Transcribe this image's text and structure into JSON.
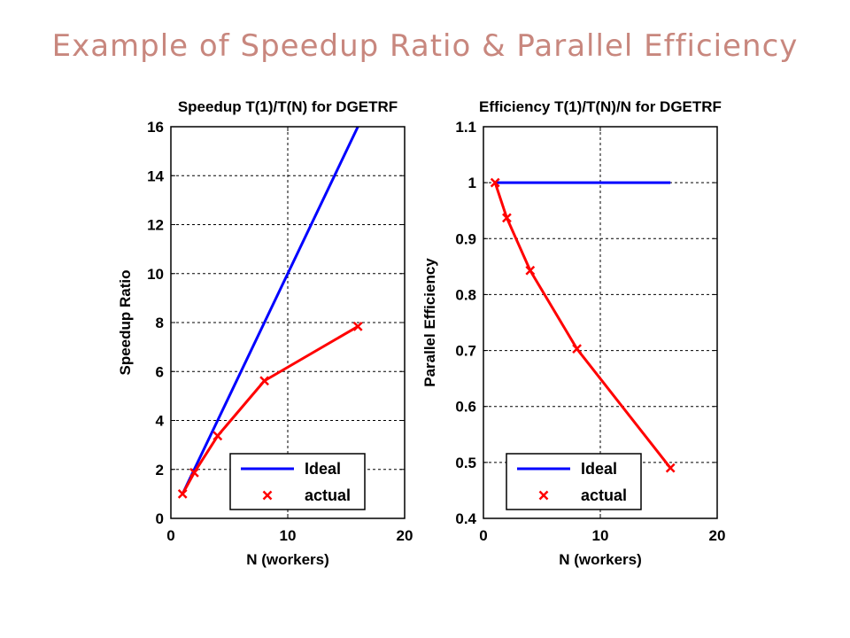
{
  "slide": {
    "title": "Example of Speedup Ratio & Parallel Efficiency"
  },
  "chart_data": [
    {
      "type": "line",
      "title": "Speedup T(1)/T(N) for DGETRF",
      "xlabel": "N (workers)",
      "ylabel": "Speedup Ratio",
      "xlim": [
        0,
        20
      ],
      "ylim": [
        0,
        16
      ],
      "xticks": [
        0,
        10,
        20
      ],
      "yticks": [
        0,
        2,
        4,
        6,
        8,
        10,
        12,
        14,
        16
      ],
      "grid": true,
      "legend_position": "bottom-right",
      "series": [
        {
          "name": "Ideal",
          "color": "#0000ff",
          "style": "line",
          "x": [
            1,
            2,
            4,
            8,
            16
          ],
          "y": [
            1,
            2,
            4,
            8,
            16
          ]
        },
        {
          "name": "actual",
          "color": "#ff0000",
          "style": "line-marker-x",
          "x": [
            1,
            2,
            4,
            8,
            16
          ],
          "y": [
            1,
            1.87,
            3.37,
            5.62,
            7.84
          ]
        }
      ]
    },
    {
      "type": "line",
      "title": "Efficiency T(1)/T(N)/N for DGETRF",
      "xlabel": "N (workers)",
      "ylabel": "Parallel Efficiency",
      "xlim": [
        0,
        20
      ],
      "ylim": [
        0.4,
        1.1
      ],
      "xticks": [
        0,
        10,
        20
      ],
      "yticks": [
        "0.4",
        "0.5",
        "0.6",
        "0.7",
        "0.8",
        "0.9",
        "1",
        "1.1"
      ],
      "grid": true,
      "legend_position": "bottom-left",
      "series": [
        {
          "name": "Ideal",
          "color": "#0000ff",
          "style": "line",
          "x": [
            1,
            2,
            4,
            8,
            16
          ],
          "y": [
            1,
            1,
            1,
            1,
            1
          ]
        },
        {
          "name": "actual",
          "color": "#ff0000",
          "style": "line-marker-x",
          "x": [
            1,
            2,
            4,
            8,
            16
          ],
          "y": [
            1,
            0.937,
            0.843,
            0.703,
            0.49
          ]
        }
      ]
    }
  ]
}
